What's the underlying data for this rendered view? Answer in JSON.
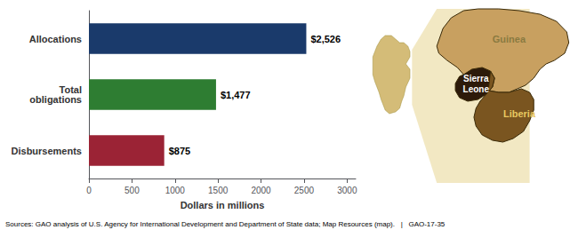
{
  "chart_data": {
    "type": "bar",
    "orientation": "horizontal",
    "categories": [
      "Disbursements",
      "Total\nobligations",
      "Allocations"
    ],
    "values": [
      875,
      1477,
      2526
    ],
    "value_labels": [
      "$875",
      "$1,477",
      "$2,526"
    ],
    "data_labels": true,
    "colors": [
      "#9b2335",
      "#2e7d32",
      "#1a3a6b"
    ],
    "xlabel": "Dollars in millions",
    "xlim": [
      0,
      3100
    ],
    "xticks": [
      0,
      500,
      1000,
      1500,
      2000,
      2500,
      3000
    ],
    "grid": false,
    "annotations": [
      "Guinea",
      "Sierra\nLeone",
      "Liberia",
      "Sources: GAO analysis of U.S. Agency for International Development and Department of State data; Map Resources (map).   |   GAO-17-35"
    ]
  }
}
